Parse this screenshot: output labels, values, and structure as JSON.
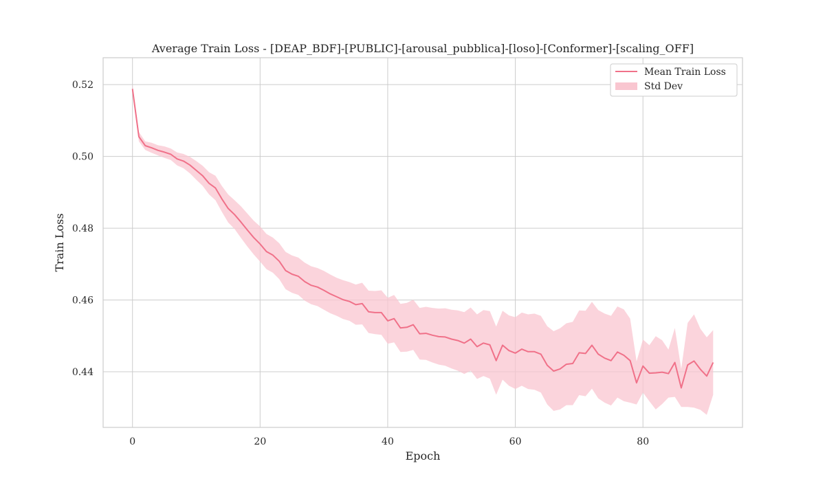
{
  "chart_data": {
    "type": "line",
    "title": "Average Train Loss - [DEAP_BDF]-[PUBLIC]-[arousal_pubblica]-[loso]-[Conformer]-[scaling_OFF]",
    "xlabel": "Epoch",
    "ylabel": "Train Loss",
    "xlim": [
      -4.6,
      95.6
    ],
    "ylim": [
      0.4245,
      0.5275
    ],
    "xticks": [
      0,
      20,
      40,
      60,
      80
    ],
    "yticks": [
      0.44,
      0.46,
      0.48,
      0.5,
      0.52
    ],
    "xtick_labels": [
      "0",
      "20",
      "40",
      "60",
      "80"
    ],
    "ytick_labels": [
      "0.44",
      "0.46",
      "0.48",
      "0.50",
      "0.52"
    ],
    "grid": true,
    "legend_position": "top-right",
    "colors": {
      "line": "#f07189",
      "band": "#f9c6d0",
      "grid": "#cccccc",
      "spine": "#cccccc"
    },
    "series": [
      {
        "name": "Mean Train Loss",
        "x": [
          0,
          1,
          2,
          3,
          4,
          5,
          6,
          7,
          8,
          9,
          10,
          11,
          12,
          13,
          14,
          15,
          16,
          17,
          18,
          19,
          20,
          21,
          22,
          23,
          24,
          25,
          26,
          27,
          28,
          29,
          30,
          31,
          32,
          33,
          34,
          35,
          36,
          37,
          38,
          39,
          40,
          41,
          42,
          43,
          44,
          45,
          46,
          47,
          48,
          49,
          50,
          51,
          52,
          53,
          54,
          55,
          56,
          57,
          58,
          59,
          60,
          61,
          62,
          63,
          64,
          65,
          66,
          67,
          68,
          69,
          70,
          71,
          72,
          73,
          74,
          75,
          76,
          77,
          78,
          79,
          80,
          81,
          82,
          83,
          84,
          85,
          86,
          87,
          88,
          89,
          90,
          91
        ],
        "values": [
          0.5188,
          0.5055,
          0.503,
          0.5024,
          0.5017,
          0.5012,
          0.5006,
          0.4993,
          0.4987,
          0.4976,
          0.4961,
          0.4946,
          0.4925,
          0.4912,
          0.4882,
          0.4855,
          0.4838,
          0.4817,
          0.4795,
          0.4774,
          0.4756,
          0.4735,
          0.4725,
          0.4708,
          0.4682,
          0.4672,
          0.4666,
          0.4651,
          0.4641,
          0.4636,
          0.4627,
          0.4617,
          0.4609,
          0.4601,
          0.4596,
          0.4587,
          0.459,
          0.4567,
          0.4565,
          0.4565,
          0.4542,
          0.4548,
          0.4522,
          0.4524,
          0.4531,
          0.4506,
          0.4507,
          0.4502,
          0.4498,
          0.4497,
          0.4491,
          0.4487,
          0.448,
          0.4491,
          0.447,
          0.448,
          0.4475,
          0.4431,
          0.4474,
          0.4459,
          0.4452,
          0.4463,
          0.4456,
          0.4456,
          0.4449,
          0.4418,
          0.4402,
          0.4408,
          0.4421,
          0.4423,
          0.4453,
          0.4451,
          0.4474,
          0.4449,
          0.4438,
          0.4431,
          0.4455,
          0.4446,
          0.4431,
          0.4369,
          0.4416,
          0.4396,
          0.4397,
          0.4399,
          0.4395,
          0.4426,
          0.4355,
          0.4419,
          0.443,
          0.4407,
          0.4388,
          0.4426
        ]
      },
      {
        "name": "Std Dev",
        "lower": [
          0.5175,
          0.5042,
          0.5018,
          0.501,
          0.5003,
          0.4996,
          0.499,
          0.4975,
          0.4967,
          0.4953,
          0.4935,
          0.4918,
          0.4894,
          0.4878,
          0.4846,
          0.4816,
          0.4798,
          0.4773,
          0.4749,
          0.4727,
          0.4707,
          0.4686,
          0.4676,
          0.4658,
          0.463,
          0.462,
          0.4614,
          0.4598,
          0.4588,
          0.4583,
          0.4573,
          0.4563,
          0.4556,
          0.4547,
          0.4542,
          0.4531,
          0.4532,
          0.4508,
          0.4505,
          0.4503,
          0.4478,
          0.4482,
          0.4455,
          0.4456,
          0.4461,
          0.4434,
          0.4433,
          0.4426,
          0.442,
          0.4417,
          0.4409,
          0.4403,
          0.4394,
          0.4403,
          0.438,
          0.4388,
          0.4381,
          0.4336,
          0.4378,
          0.4361,
          0.4352,
          0.4361,
          0.4352,
          0.435,
          0.4342,
          0.4309,
          0.4291,
          0.4295,
          0.4307,
          0.4307,
          0.4335,
          0.4332,
          0.4353,
          0.4326,
          0.4314,
          0.4306,
          0.4328,
          0.4318,
          0.4314,
          0.4309,
          0.4342,
          0.4318,
          0.4295,
          0.431,
          0.4328,
          0.433,
          0.4302,
          0.4302,
          0.43,
          0.4294,
          0.428,
          0.4336
        ],
        "upper": [
          0.5201,
          0.5068,
          0.5042,
          0.5038,
          0.5031,
          0.5028,
          0.5022,
          0.5011,
          0.5007,
          0.4999,
          0.4987,
          0.4974,
          0.4956,
          0.4946,
          0.4918,
          0.4894,
          0.4878,
          0.4861,
          0.4841,
          0.4821,
          0.4805,
          0.4784,
          0.4774,
          0.4758,
          0.4734,
          0.4724,
          0.4718,
          0.4704,
          0.4694,
          0.4689,
          0.4681,
          0.4671,
          0.4662,
          0.4655,
          0.465,
          0.4643,
          0.4648,
          0.4626,
          0.4625,
          0.4627,
          0.4606,
          0.4614,
          0.4589,
          0.4592,
          0.4601,
          0.4578,
          0.4581,
          0.4578,
          0.4576,
          0.4577,
          0.4573,
          0.4571,
          0.4566,
          0.4579,
          0.456,
          0.4572,
          0.4569,
          0.4526,
          0.457,
          0.4557,
          0.4552,
          0.4565,
          0.456,
          0.4562,
          0.4556,
          0.4527,
          0.4513,
          0.4521,
          0.4535,
          0.4539,
          0.4571,
          0.457,
          0.4595,
          0.4572,
          0.4562,
          0.4556,
          0.4582,
          0.4574,
          0.4548,
          0.4429,
          0.449,
          0.4474,
          0.4499,
          0.4488,
          0.4462,
          0.4522,
          0.4408,
          0.4536,
          0.456,
          0.452,
          0.4496,
          0.4516
        ]
      }
    ]
  }
}
